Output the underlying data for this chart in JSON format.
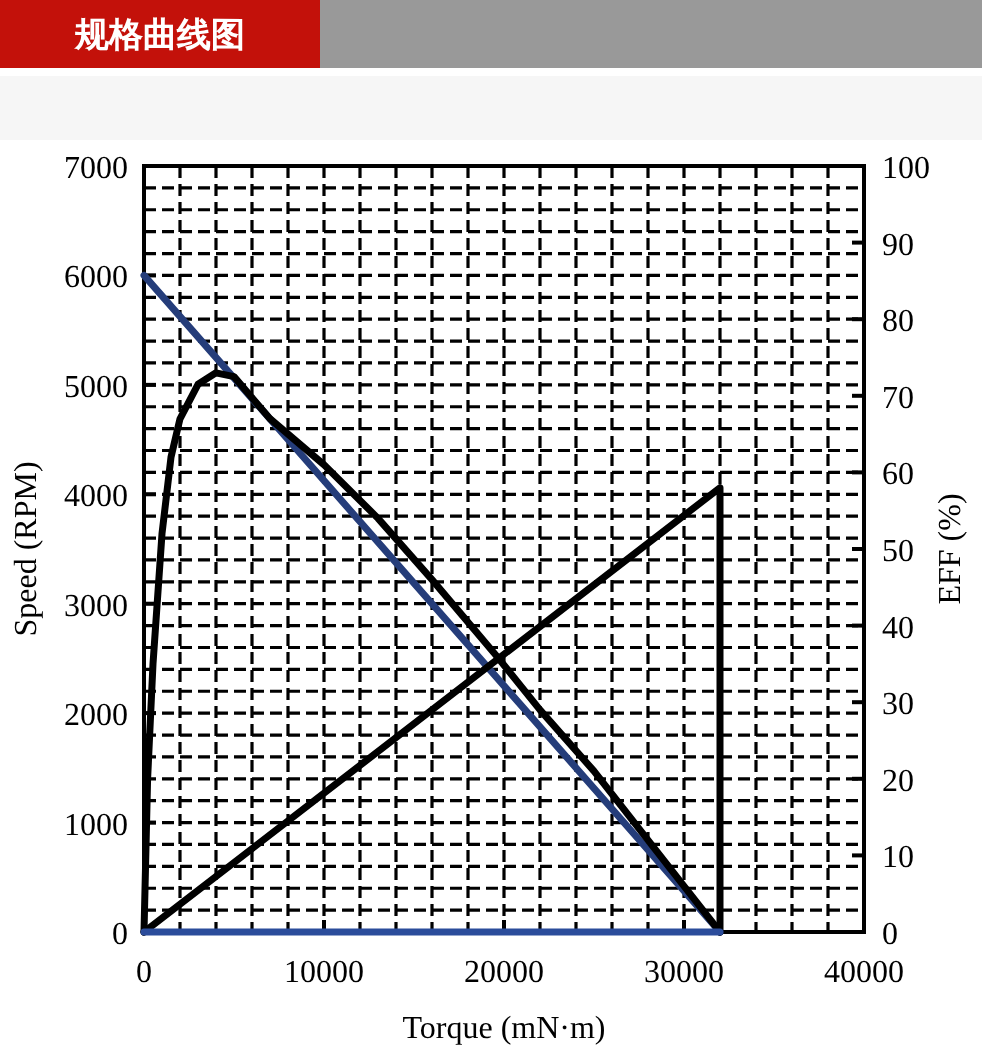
{
  "chart_data": {
    "type": "line",
    "title": "规格曲线图",
    "xlabel": "Torque (mN·m)",
    "ylabel": "Speed (RPM)",
    "y2label": "EFF (%)",
    "xlim": [
      0,
      40000
    ],
    "xticks": [
      0,
      10000,
      20000,
      30000,
      40000
    ],
    "ylim": [
      0,
      7000
    ],
    "yticks": [
      0,
      1000,
      2000,
      3000,
      4000,
      5000,
      6000,
      7000
    ],
    "y2lim": [
      0,
      100
    ],
    "y2ticks": [
      0,
      10,
      20,
      30,
      40,
      50,
      60,
      70,
      80,
      90,
      100
    ],
    "grid": true,
    "series": [
      {
        "color": "#253d7a",
        "x": [
          0,
          32000
        ],
        "values": [
          6000,
          0
        ]
      },
      {
        "color": "#000000",
        "axis": "y2",
        "x": [
          0,
          200,
          500,
          1000,
          1500,
          2000,
          3000,
          4000,
          5000,
          7000,
          10000,
          13000,
          16000,
          19600,
          22000,
          25000,
          28000,
          30000,
          32000
        ],
        "values": [
          0,
          20,
          35,
          52,
          62,
          67,
          71.5,
          73,
          72.5,
          67,
          61,
          54,
          46,
          36,
          29,
          21,
          12,
          6,
          0
        ]
      },
      {
        "color": "#000000",
        "axis": "y2",
        "x": [
          0,
          32000,
          32000
        ],
        "values": [
          0,
          58,
          0
        ]
      },
      {
        "color": "#2b4c9b",
        "x": [
          0,
          32000
        ],
        "values": [
          0,
          0
        ]
      }
    ]
  }
}
